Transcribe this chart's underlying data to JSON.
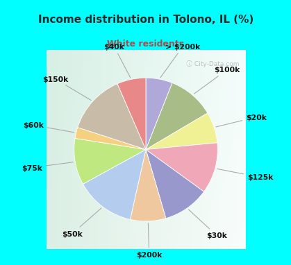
{
  "title": "Income distribution in Tolono, IL (%)",
  "subtitle": "White residents",
  "title_color": "#2a2a2a",
  "subtitle_color": "#a05050",
  "bg_color": "#00ffff",
  "chart_bg_left": "#c8e8d8",
  "chart_bg_right": "#e8f8f4",
  "labels": [
    "> $200k",
    "$100k",
    "$20k",
    "$125k",
    "$30k",
    "$200k",
    "$50k",
    "$75k",
    "$60k",
    "$150k",
    "$40k"
  ],
  "values": [
    6.0,
    10.5,
    7.0,
    11.5,
    10.5,
    8.0,
    13.5,
    10.5,
    2.5,
    13.5,
    6.5
  ],
  "colors": [
    "#b0a8d8",
    "#a8bc88",
    "#f0f094",
    "#f0a8b8",
    "#9898cc",
    "#f0c8a0",
    "#b4ccee",
    "#c0e880",
    "#f4d080",
    "#c8bca8",
    "#e88888"
  ],
  "startangle": 90,
  "label_fontsize": 7.8,
  "watermark": "City-Data.com",
  "title_fontsize": 11,
  "subtitle_fontsize": 9
}
